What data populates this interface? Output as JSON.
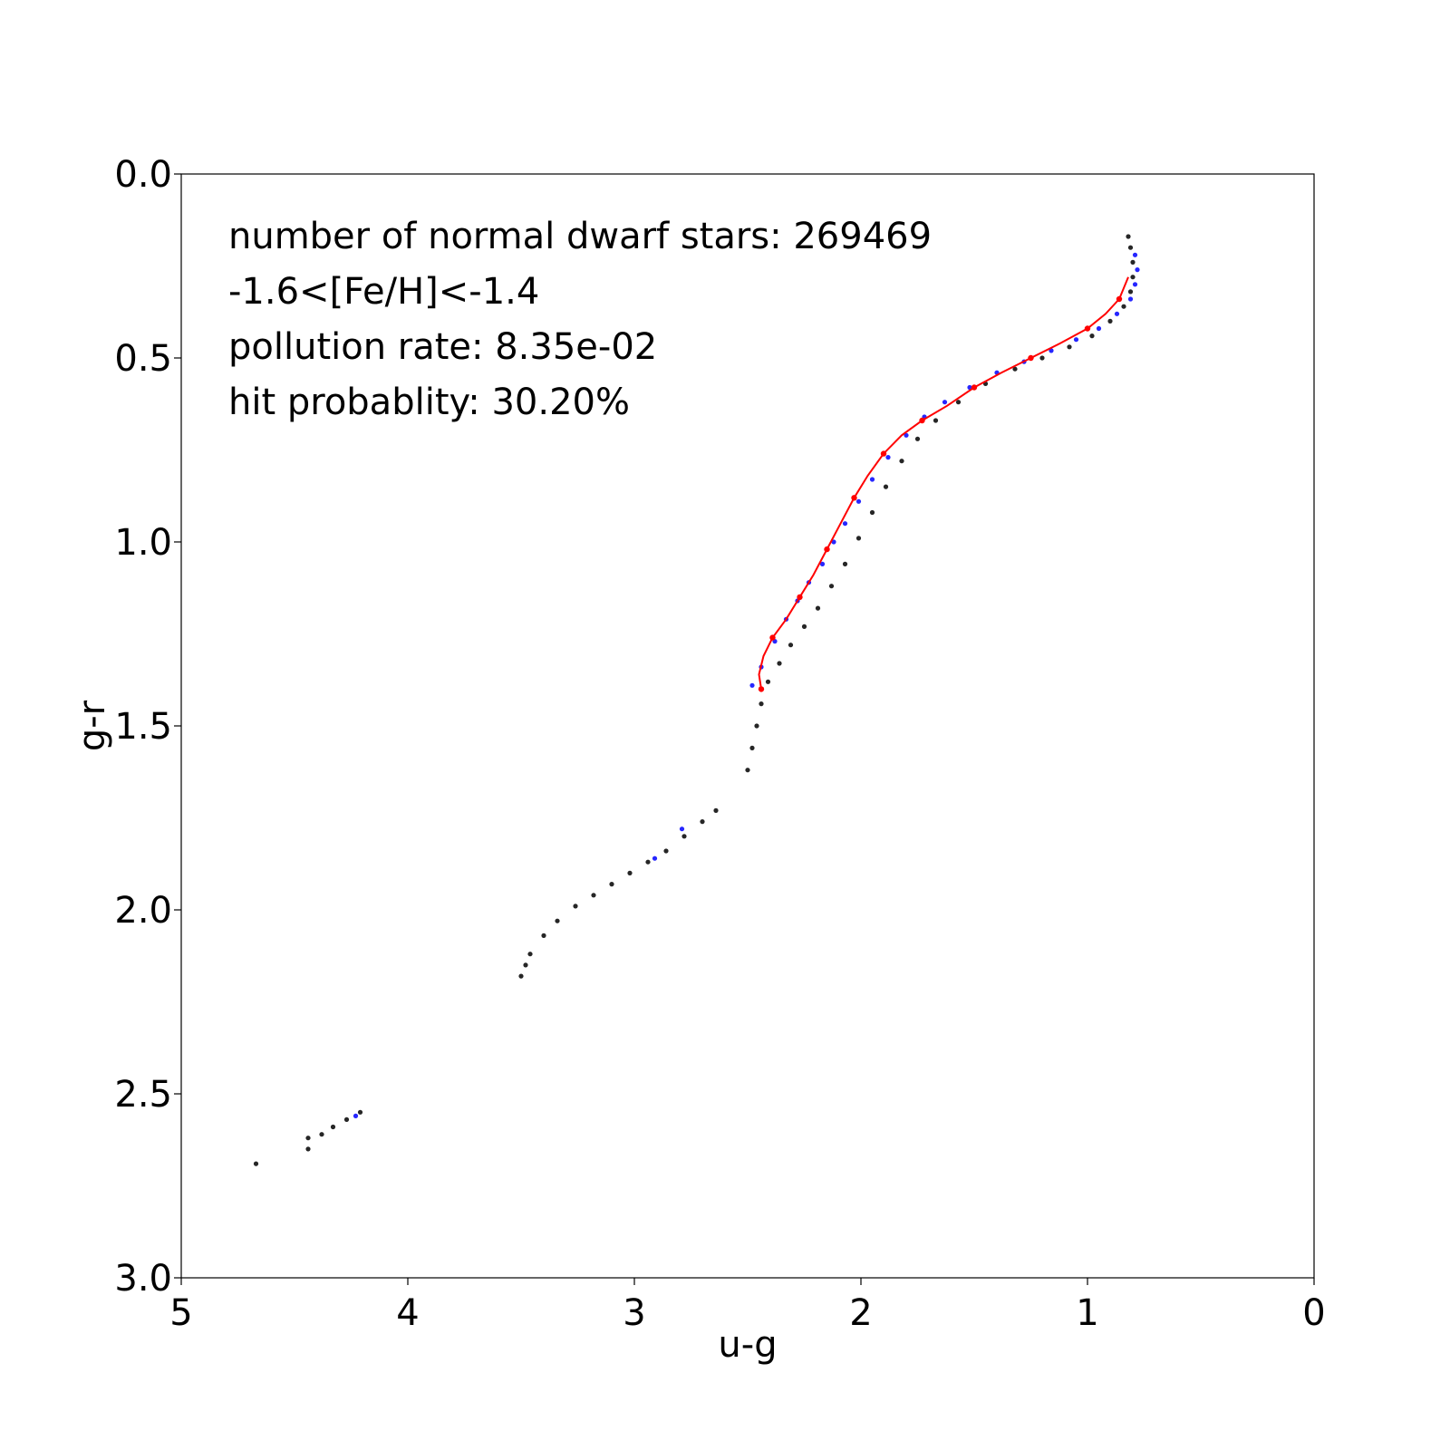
{
  "chart_data": {
    "type": "scatter",
    "title": "",
    "xlabel": "u-g",
    "ylabel": "g-r",
    "xlim": [
      5,
      0
    ],
    "ylim": [
      3.0,
      0.0
    ],
    "x_inverted": true,
    "y_inverted": true,
    "grid": false,
    "x_ticks": [
      "5",
      "4",
      "3",
      "2",
      "1",
      "0"
    ],
    "x_tick_values": [
      5,
      4,
      3,
      2,
      1,
      0
    ],
    "y_ticks": [
      "0.0",
      "0.5",
      "1.0",
      "1.5",
      "2.0",
      "2.5",
      "3.0"
    ],
    "y_tick_values": [
      0.0,
      0.5,
      1.0,
      1.5,
      2.0,
      2.5,
      3.0
    ],
    "annotations": [
      "number of normal dwarf stars: 269469",
      "-1.6<[Fe/H]<-1.4",
      "pollution rate: 8.35e-02",
      "hit probablity: 30.20%"
    ],
    "colors": {
      "black_stars": "#000000",
      "blue_stars": "#0000ff",
      "red_fit": "#ff0000"
    },
    "series": [
      {
        "style": "black-dots",
        "color": "#000000",
        "points": [
          [
            0.82,
            0.17
          ],
          [
            0.81,
            0.2
          ],
          [
            0.8,
            0.24
          ],
          [
            0.8,
            0.28
          ],
          [
            0.81,
            0.32
          ],
          [
            0.84,
            0.36
          ],
          [
            0.9,
            0.4
          ],
          [
            0.98,
            0.44
          ],
          [
            1.08,
            0.47
          ],
          [
            1.2,
            0.5
          ],
          [
            1.32,
            0.53
          ],
          [
            1.45,
            0.57
          ],
          [
            1.57,
            0.62
          ],
          [
            1.67,
            0.67
          ],
          [
            1.75,
            0.72
          ],
          [
            1.82,
            0.78
          ],
          [
            1.89,
            0.85
          ],
          [
            1.95,
            0.92
          ],
          [
            2.01,
            0.99
          ],
          [
            2.07,
            1.06
          ],
          [
            2.13,
            1.12
          ],
          [
            2.19,
            1.18
          ],
          [
            2.25,
            1.23
          ],
          [
            2.31,
            1.28
          ],
          [
            2.36,
            1.33
          ],
          [
            2.41,
            1.38
          ],
          [
            2.44,
            1.44
          ],
          [
            2.46,
            1.5
          ],
          [
            2.48,
            1.56
          ],
          [
            2.5,
            1.62
          ],
          [
            2.64,
            1.73
          ],
          [
            2.7,
            1.76
          ],
          [
            2.78,
            1.8
          ],
          [
            2.86,
            1.84
          ],
          [
            2.94,
            1.87
          ],
          [
            3.02,
            1.9
          ],
          [
            3.1,
            1.93
          ],
          [
            3.18,
            1.96
          ],
          [
            3.26,
            1.99
          ],
          [
            3.34,
            2.03
          ],
          [
            3.4,
            2.07
          ],
          [
            3.46,
            2.12
          ],
          [
            3.48,
            2.15
          ],
          [
            3.5,
            2.18
          ],
          [
            4.21,
            2.55
          ],
          [
            4.27,
            2.57
          ],
          [
            4.33,
            2.59
          ],
          [
            4.38,
            2.61
          ],
          [
            4.44,
            2.62
          ],
          [
            4.44,
            2.65
          ],
          [
            4.67,
            2.69
          ]
        ]
      },
      {
        "style": "blue-dots",
        "color": "#0000ff",
        "points": [
          [
            0.79,
            0.22
          ],
          [
            0.78,
            0.26
          ],
          [
            0.79,
            0.3
          ],
          [
            0.81,
            0.34
          ],
          [
            0.87,
            0.38
          ],
          [
            0.95,
            0.42
          ],
          [
            1.05,
            0.45
          ],
          [
            1.16,
            0.48
          ],
          [
            1.28,
            0.51
          ],
          [
            1.4,
            0.54
          ],
          [
            1.52,
            0.58
          ],
          [
            1.63,
            0.62
          ],
          [
            1.72,
            0.66
          ],
          [
            1.8,
            0.71
          ],
          [
            1.88,
            0.77
          ],
          [
            1.95,
            0.83
          ],
          [
            2.01,
            0.89
          ],
          [
            2.07,
            0.95
          ],
          [
            2.12,
            1.0
          ],
          [
            2.17,
            1.06
          ],
          [
            2.23,
            1.11
          ],
          [
            2.28,
            1.16
          ],
          [
            2.33,
            1.21
          ],
          [
            2.38,
            1.27
          ],
          [
            2.44,
            1.34
          ],
          [
            2.48,
            1.39
          ],
          [
            2.79,
            1.78
          ],
          [
            2.91,
            1.86
          ],
          [
            4.23,
            2.56
          ]
        ]
      }
    ],
    "fit_line": {
      "name": "",
      "color": "#ff0000",
      "points": [
        [
          0.82,
          0.28
        ],
        [
          0.86,
          0.34
        ],
        [
          0.92,
          0.38
        ],
        [
          1.0,
          0.42
        ],
        [
          1.12,
          0.46
        ],
        [
          1.25,
          0.5
        ],
        [
          1.38,
          0.54
        ],
        [
          1.5,
          0.58
        ],
        [
          1.62,
          0.63
        ],
        [
          1.73,
          0.67
        ],
        [
          1.82,
          0.71
        ],
        [
          1.9,
          0.76
        ],
        [
          1.97,
          0.82
        ],
        [
          2.03,
          0.88
        ],
        [
          2.09,
          0.95
        ],
        [
          2.15,
          1.02
        ],
        [
          2.21,
          1.09
        ],
        [
          2.27,
          1.15
        ],
        [
          2.33,
          1.21
        ],
        [
          2.39,
          1.26
        ],
        [
          2.43,
          1.31
        ],
        [
          2.45,
          1.36
        ],
        [
          2.44,
          1.4
        ]
      ],
      "markers": [
        [
          0.86,
          0.34
        ],
        [
          1.0,
          0.42
        ],
        [
          1.25,
          0.5
        ],
        [
          1.5,
          0.58
        ],
        [
          1.73,
          0.67
        ],
        [
          1.9,
          0.76
        ],
        [
          2.03,
          0.88
        ],
        [
          2.15,
          1.02
        ],
        [
          2.27,
          1.15
        ],
        [
          2.39,
          1.26
        ],
        [
          2.44,
          1.4
        ]
      ]
    }
  }
}
